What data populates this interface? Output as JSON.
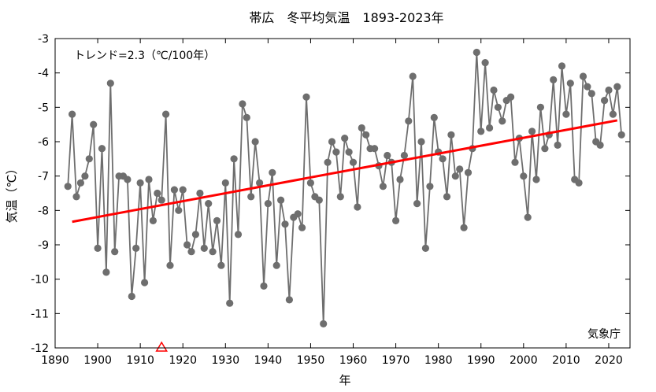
{
  "chart_data": {
    "type": "line",
    "title": "帯広　冬平均気温　1893-2023年",
    "xlabel": "年",
    "ylabel": "気温（℃）",
    "trend_label": "トレンド=2.3（℃/100年）",
    "source": "気象庁",
    "xlim": [
      1890,
      2025
    ],
    "ylim": [
      -12,
      -3
    ],
    "x_ticks": [
      1890,
      1900,
      1910,
      1920,
      1930,
      1940,
      1950,
      1960,
      1970,
      1980,
      1990,
      2000,
      2010,
      2020
    ],
    "y_ticks": [
      -12,
      -11,
      -10,
      -9,
      -8,
      -7,
      -6,
      -5,
      -4,
      -3
    ],
    "grid": false,
    "legend": "none",
    "colors": {
      "series": "#6e6e6e",
      "trend": "#ff0000",
      "marker": "#ff0000"
    },
    "x": [
      1893,
      1894,
      1895,
      1896,
      1897,
      1898,
      1899,
      1900,
      1901,
      1902,
      1903,
      1904,
      1905,
      1906,
      1907,
      1908,
      1909,
      1910,
      1911,
      1912,
      1913,
      1914,
      1915,
      1916,
      1917,
      1918,
      1919,
      1920,
      1921,
      1922,
      1923,
      1924,
      1925,
      1926,
      1927,
      1928,
      1929,
      1930,
      1931,
      1932,
      1933,
      1934,
      1935,
      1936,
      1937,
      1938,
      1939,
      1940,
      1941,
      1942,
      1943,
      1944,
      1945,
      1946,
      1947,
      1948,
      1949,
      1950,
      1951,
      1952,
      1953,
      1954,
      1955,
      1956,
      1957,
      1958,
      1959,
      1960,
      1961,
      1962,
      1963,
      1964,
      1965,
      1966,
      1967,
      1968,
      1969,
      1970,
      1971,
      1972,
      1973,
      1974,
      1975,
      1976,
      1977,
      1978,
      1979,
      1980,
      1981,
      1982,
      1983,
      1984,
      1985,
      1986,
      1987,
      1988,
      1989,
      1990,
      1991,
      1992,
      1993,
      1994,
      1995,
      1996,
      1997,
      1998,
      1999,
      2000,
      2001,
      2002,
      2003,
      2004,
      2005,
      2006,
      2007,
      2008,
      2009,
      2010,
      2011,
      2012,
      2013,
      2014,
      2015,
      2016,
      2017,
      2018,
      2019,
      2020,
      2021,
      2022,
      2023
    ],
    "series": [
      {
        "values": [
          -7.3,
          -5.2,
          -7.6,
          -7.2,
          -7.0,
          -6.5,
          -5.5,
          -9.1,
          -6.2,
          -9.8,
          -4.3,
          -9.2,
          -7.0,
          -7.0,
          -7.1,
          -10.5,
          -9.1,
          -7.2,
          -10.1,
          -7.1,
          -8.3,
          -7.5,
          -7.7,
          -5.2,
          -9.6,
          -7.4,
          -8.0,
          -7.4,
          -9.0,
          -9.2,
          -8.7,
          -7.5,
          -9.1,
          -7.8,
          -9.2,
          -8.3,
          -9.6,
          -7.2,
          -10.7,
          -6.5,
          -8.7,
          -4.9,
          -5.3,
          -7.6,
          -6.0,
          -7.2,
          -10.2,
          -7.8,
          -6.9,
          -9.6,
          -7.7,
          -8.4,
          -10.6,
          -8.2,
          -8.1,
          -8.5,
          -4.7,
          -7.2,
          -7.6,
          -7.7,
          -11.3,
          -6.6,
          -6.0,
          -6.3,
          -7.6,
          -5.9,
          -6.3,
          -6.6,
          -7.9,
          -5.6,
          -5.8,
          -6.2,
          -6.2,
          -6.7,
          -7.3,
          -6.4,
          -6.6,
          -8.3,
          -7.1,
          -6.4,
          -5.4,
          -4.1,
          -7.8,
          -6.0,
          -9.1,
          -7.3,
          -5.3,
          -6.3,
          -6.5,
          -7.6,
          -5.8,
          -7.0,
          -6.8,
          -8.5,
          -6.9,
          -6.2,
          -3.4,
          -5.7,
          -3.7,
          -5.6,
          -4.5,
          -5.0,
          -5.4,
          -4.8,
          -4.7,
          -6.6,
          -5.9,
          -7.0,
          -8.2,
          -5.7,
          -7.1,
          -5.0,
          -6.2,
          -5.8,
          -4.2,
          -6.1,
          -3.8,
          -5.2,
          -4.3,
          -7.1,
          -7.2,
          -4.1,
          -4.4,
          -4.6,
          -6.0,
          -6.1,
          -4.8,
          -4.5,
          -5.2,
          -4.4,
          -5.8
        ]
      }
    ],
    "trend": {
      "x": [
        1894,
        2022
      ],
      "y": [
        -8.33,
        -5.38
      ]
    },
    "markers": [
      {
        "x": 1915,
        "y": -12,
        "shape": "triangle-open"
      }
    ]
  }
}
